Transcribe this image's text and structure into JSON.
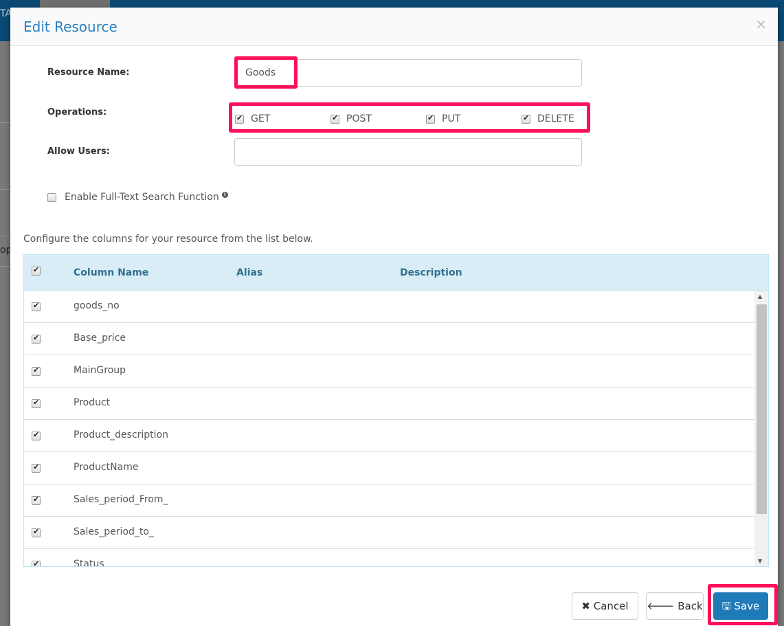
{
  "background": {
    "fragment_top": "TA",
    "fragment_left": "op."
  },
  "modal": {
    "title": "Edit Resource",
    "close": "×"
  },
  "form": {
    "resource_name_label": "Resource Name:",
    "resource_name_value": "Goods",
    "operations_label": "Operations:",
    "operations": [
      {
        "label": "GET",
        "checked": true
      },
      {
        "label": "POST",
        "checked": true
      },
      {
        "label": "PUT",
        "checked": true
      },
      {
        "label": "DELETE",
        "checked": true
      }
    ],
    "allow_users_label": "Allow Users:",
    "allow_users_value": "",
    "fulltext_label": "Enable Full-Text Search Function",
    "fulltext_checked": false
  },
  "table": {
    "intro": "Configure the columns for your resource from the list below.",
    "headers": [
      "Column Name",
      "Alias",
      "Description"
    ],
    "rows": [
      {
        "name": "goods_no"
      },
      {
        "name": "Base_price"
      },
      {
        "name": "MainGroup"
      },
      {
        "name": "Product"
      },
      {
        "name": "Product_description"
      },
      {
        "name": "ProductName"
      },
      {
        "name": "Sales_period_From_"
      },
      {
        "name": "Sales_period_to_"
      },
      {
        "name": "Status"
      }
    ]
  },
  "footer": {
    "cancel": "Cancel",
    "back": "Back",
    "save": "Save"
  },
  "colors": {
    "highlight": "#ff0f5a",
    "primary": "#1f7ab8",
    "title": "#2a7fbf",
    "table_header": "#d9edf7"
  }
}
